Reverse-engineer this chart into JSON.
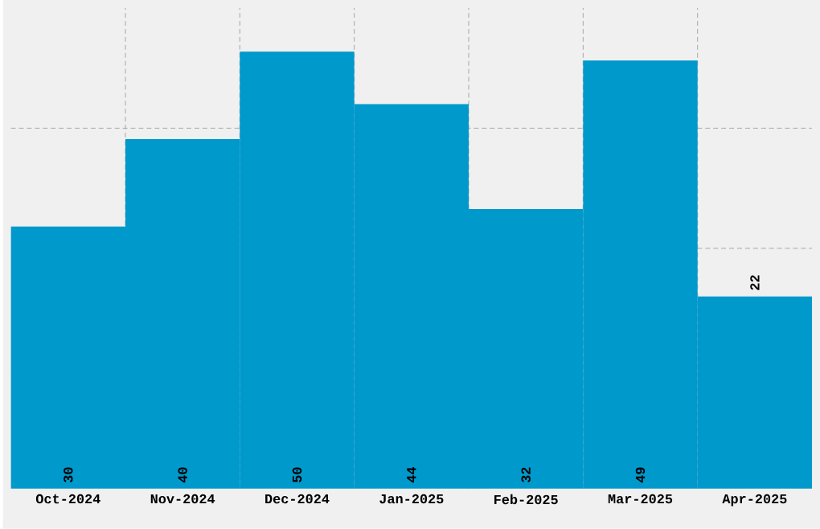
{
  "chart_data": {
    "type": "bar",
    "categories": [
      "Oct-2024",
      "Nov-2024",
      "Dec-2024",
      "Jan-2025",
      "Feb-2025",
      "Mar-2025",
      "Apr-2025"
    ],
    "values": [
      30,
      40,
      50,
      44,
      32,
      49,
      22
    ],
    "color": "#0099cc",
    "ylim": [
      0,
      55
    ],
    "yticks": [
      {
        "value": 13.75,
        "label": null
      },
      {
        "value": 27.5,
        "label": null
      },
      {
        "value": 41.25,
        "label": null
      }
    ],
    "grid": true,
    "tick_labels": "x",
    "data_labels": true
  }
}
